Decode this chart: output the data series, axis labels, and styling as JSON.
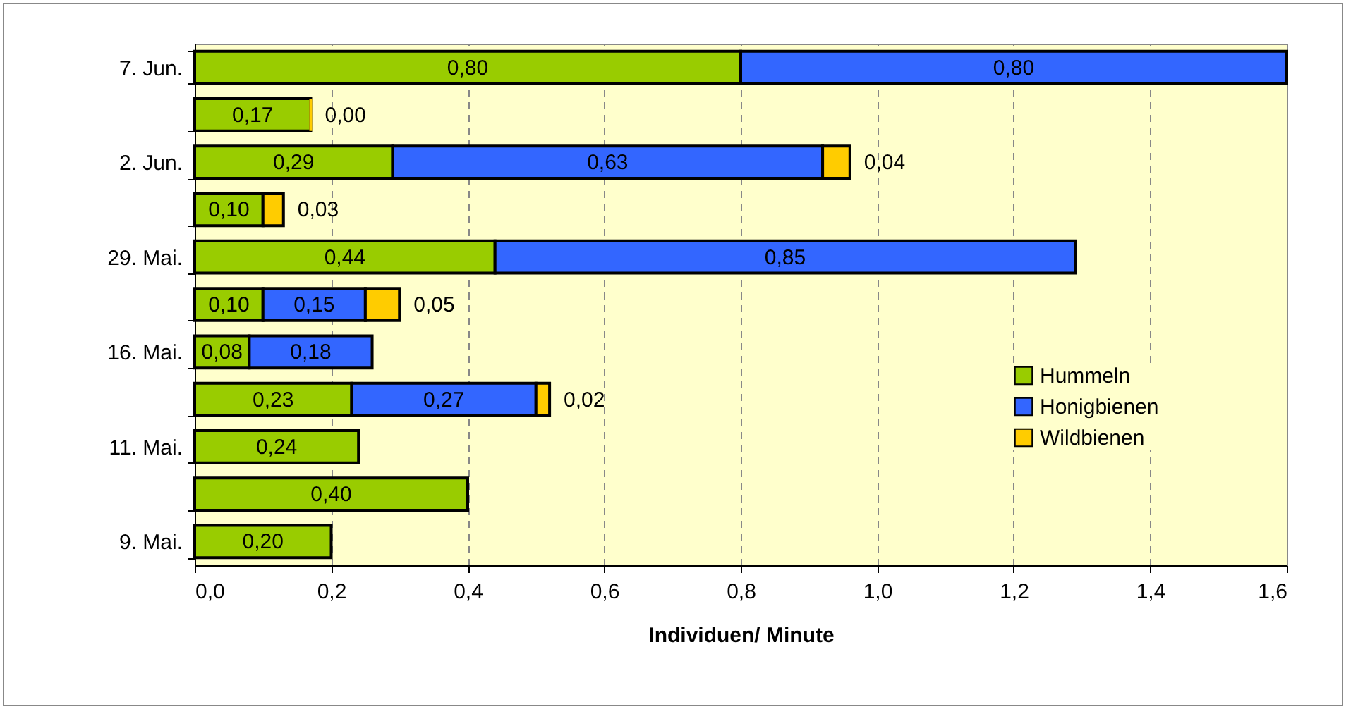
{
  "chart_data": {
    "type": "bar",
    "orientation": "horizontal",
    "stacked": true,
    "xlabel": "Individuen/ Minute",
    "categories": [
      "7. Jun.",
      null,
      "2. Jun.",
      null,
      "29. Mai.",
      null,
      "16. Mai.",
      null,
      "11. Mai.",
      null,
      "9. Mai."
    ],
    "series": [
      {
        "name": "Hummeln",
        "color": "#99cc00",
        "values": [
          0.8,
          0.17,
          0.29,
          0.1,
          0.44,
          0.1,
          0.08,
          0.23,
          0.24,
          0.4,
          0.2
        ],
        "value_labels": [
          "0,80",
          "0,17",
          "0,29",
          "0,10",
          "0,44",
          "0,10",
          "0,08",
          "0,23",
          "0,24",
          "0,40",
          "0,20"
        ]
      },
      {
        "name": "Honigbienen",
        "color": "#3366ff",
        "values": [
          0.8,
          null,
          0.63,
          null,
          0.85,
          0.15,
          0.18,
          0.27,
          null,
          null,
          null
        ],
        "value_labels": [
          "0,80",
          null,
          "0,63",
          null,
          "0,85",
          "0,15",
          "0,18",
          "0,27",
          null,
          null,
          null
        ]
      },
      {
        "name": "Wildbienen",
        "color": "#ffcc00",
        "values": [
          null,
          0.0,
          0.04,
          0.03,
          null,
          0.05,
          null,
          0.02,
          null,
          null,
          null
        ],
        "value_labels": [
          null,
          "0,00",
          "0,04",
          "0,03",
          null,
          "0,05",
          null,
          "0,02",
          null,
          null,
          null
        ]
      }
    ],
    "xlim": [
      0,
      1.6
    ],
    "xticks": [
      {
        "value": 0,
        "label": "0,0"
      },
      {
        "value": 0.2,
        "label": "0,2"
      },
      {
        "value": 0.4,
        "label": "0,4"
      },
      {
        "value": 0.6,
        "label": "0,6"
      },
      {
        "value": 0.8,
        "label": "0,8"
      },
      {
        "value": 1.0,
        "label": "1,0"
      },
      {
        "value": 1.2,
        "label": "1,2"
      },
      {
        "value": 1.4,
        "label": "1,4"
      },
      {
        "value": 1.6,
        "label": "1,6"
      }
    ],
    "grid": "x",
    "legend": "bottom right"
  }
}
